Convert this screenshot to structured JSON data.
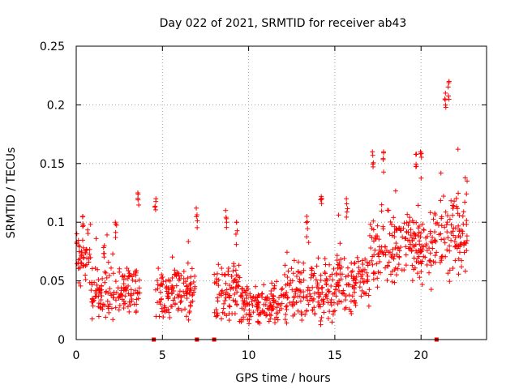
{
  "chart_data": {
    "type": "scatter",
    "title": "Day 022 of 2021, SRMTID for receiver ab43",
    "xlabel": "GPS time / hours",
    "ylabel": "SRMTID / TECUs",
    "xlim": [
      0,
      23.8
    ],
    "ylim": [
      0,
      0.25
    ],
    "x_ticks": [
      0,
      5,
      10,
      15,
      20
    ],
    "y_ticks": [
      0,
      0.05,
      0.1,
      0.15,
      0.2,
      0.25
    ],
    "x_tick_labels": [
      "0",
      "5",
      "10",
      "15",
      "20"
    ],
    "y_tick_labels": [
      "0",
      "0.05",
      "0.1",
      "0.15",
      "0.2",
      "0.25"
    ],
    "grid": true,
    "marker": "+",
    "color": "#ff0000",
    "zero_markers_x": [
      4.5,
      7.0,
      8.0,
      20.9
    ],
    "series": [
      {
        "name": "SRMTID",
        "segments": [
          {
            "x_start": 0.0,
            "x_end": 0.9,
            "base": 0.07,
            "spread": 0.035
          },
          {
            "x_start": 0.9,
            "x_end": 3.7,
            "base": 0.04,
            "spread": 0.025
          },
          {
            "x_start": 4.6,
            "x_end": 6.9,
            "base": 0.04,
            "spread": 0.025
          },
          {
            "x_start": 8.0,
            "x_end": 9.6,
            "base": 0.04,
            "spread": 0.03
          },
          {
            "x_start": 9.6,
            "x_end": 12.0,
            "base": 0.03,
            "spread": 0.02
          },
          {
            "x_start": 12.0,
            "x_end": 15.0,
            "base": 0.04,
            "spread": 0.03
          },
          {
            "x_start": 15.0,
            "x_end": 17.0,
            "base": 0.05,
            "spread": 0.03
          },
          {
            "x_start": 17.0,
            "x_end": 20.9,
            "base": 0.08,
            "spread": 0.04
          },
          {
            "x_start": 20.9,
            "x_end": 22.7,
            "base": 0.09,
            "spread": 0.045
          }
        ],
        "peaks": [
          {
            "x": 0.4,
            "y": 0.105
          },
          {
            "x": 1.6,
            "y": 0.08
          },
          {
            "x": 2.3,
            "y": 0.1
          },
          {
            "x": 3.6,
            "y": 0.125
          },
          {
            "x": 4.6,
            "y": 0.12
          },
          {
            "x": 7.0,
            "y": 0.112
          },
          {
            "x": 8.7,
            "y": 0.11
          },
          {
            "x": 9.3,
            "y": 0.1
          },
          {
            "x": 13.4,
            "y": 0.105
          },
          {
            "x": 14.2,
            "y": 0.122
          },
          {
            "x": 15.7,
            "y": 0.12
          },
          {
            "x": 17.2,
            "y": 0.16
          },
          {
            "x": 17.8,
            "y": 0.16
          },
          {
            "x": 19.7,
            "y": 0.158
          },
          {
            "x": 20.0,
            "y": 0.16
          },
          {
            "x": 21.4,
            "y": 0.21
          },
          {
            "x": 21.6,
            "y": 0.22
          }
        ]
      }
    ]
  }
}
